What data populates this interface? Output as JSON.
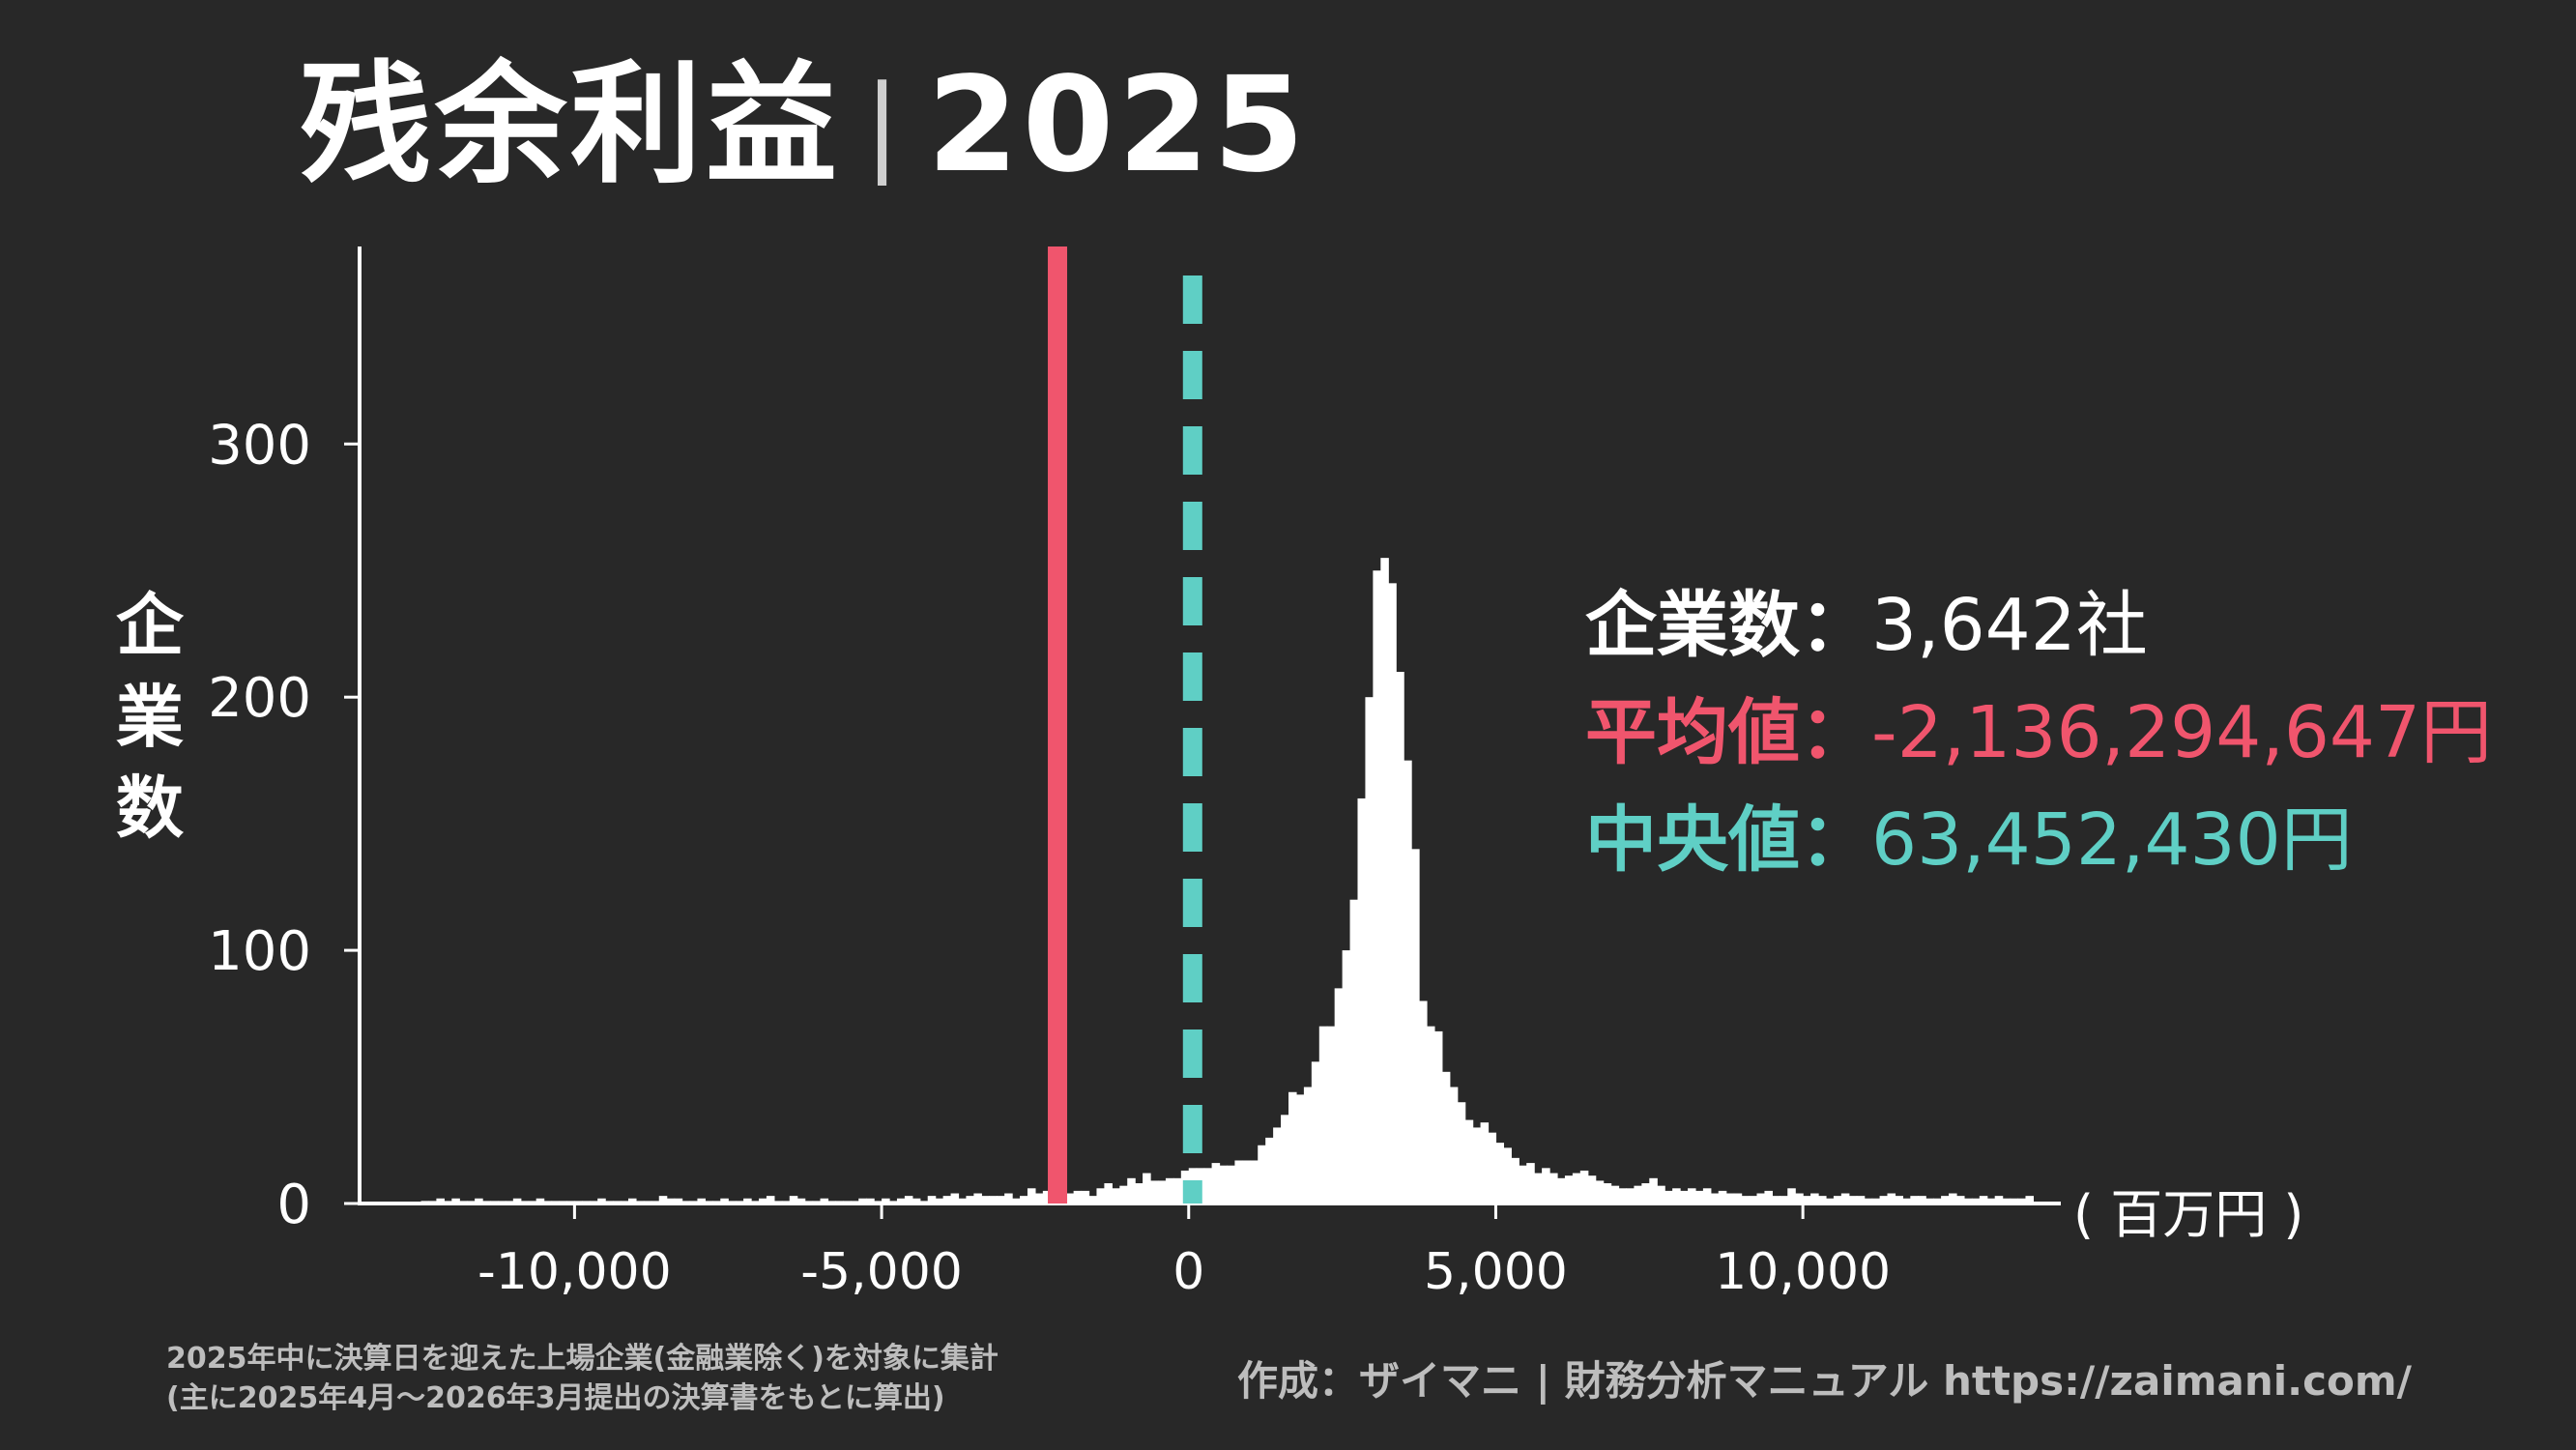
{
  "title": {
    "main": "残余利益",
    "separator": "|",
    "year": "2025"
  },
  "y_axis_label": "企業数",
  "x_axis_unit": "( 百万円 )",
  "stats": {
    "count_label": "企業数：",
    "count_value": "3,642社",
    "mean_label": "平均値：",
    "mean_value": "-2,136,294,647円",
    "median_label": "中央値：",
    "median_value": "63,452,430円"
  },
  "footnote": {
    "line1": "2025年中に決算日を迎えた上場企業(金融業除く)を対象に集計",
    "line2": "(主に2025年4月〜2026年3月提出の決算書をもとに算出)"
  },
  "credit": "作成：ザイマニ | 財務分析マニュアル https://zaimani.com/",
  "colors": {
    "background": "#282828",
    "bars": "#ffffff",
    "mean_line": "#f0556d",
    "median_line": "#5fcfc5",
    "footnote": "#bdbdbd"
  },
  "chart_data": {
    "type": "histogram",
    "x_unit": "百万円",
    "xlim": [
      -13500,
      14200
    ],
    "ylim": [
      0,
      378
    ],
    "x_ticks": [
      -10000,
      -5000,
      0,
      5000,
      10000
    ],
    "x_tick_labels": [
      "-10,000",
      "-5,000",
      "0",
      "5,000",
      "10,000"
    ],
    "y_ticks": [
      0,
      100,
      200,
      300
    ],
    "y_tick_labels": [
      "0",
      "100",
      "200",
      "300"
    ],
    "bin_width": 125,
    "bin_start": -12500,
    "counts": [
      1,
      1,
      2,
      1,
      2,
      1,
      1,
      2,
      1,
      1,
      1,
      1,
      2,
      1,
      1,
      2,
      1,
      1,
      1,
      1,
      1,
      1,
      1,
      2,
      1,
      1,
      1,
      2,
      1,
      1,
      1,
      3,
      2,
      2,
      1,
      1,
      2,
      1,
      1,
      2,
      1,
      1,
      2,
      1,
      2,
      3,
      1,
      1,
      3,
      2,
      1,
      1,
      2,
      1,
      1,
      1,
      1,
      2,
      2,
      1,
      2,
      1,
      2,
      3,
      2,
      1,
      3,
      2,
      3,
      4,
      2,
      3,
      4,
      3,
      3,
      3,
      4,
      2,
      3,
      6,
      4,
      5,
      5,
      6,
      4,
      5,
      5,
      3,
      6,
      8,
      6,
      7,
      10,
      8,
      12,
      9,
      9,
      10,
      10,
      13,
      14,
      14,
      14,
      16,
      15,
      15,
      17,
      17,
      17,
      23,
      26,
      30,
      35,
      44,
      43,
      46,
      56,
      70,
      70,
      85,
      100,
      120,
      160,
      200,
      250,
      255,
      245,
      210,
      175,
      140,
      80,
      70,
      68,
      52,
      46,
      40,
      33,
      30,
      32,
      28,
      24,
      22,
      18,
      15,
      16,
      12,
      14,
      12,
      10,
      11,
      12,
      13,
      11,
      9,
      8,
      7,
      6,
      6,
      7,
      8,
      10,
      7,
      5,
      6,
      5,
      6,
      5,
      6,
      4,
      5,
      4,
      4,
      3,
      3,
      4,
      5,
      3,
      3,
      6,
      4,
      3,
      4,
      3,
      2,
      3,
      4,
      3,
      3,
      2,
      2,
      3,
      4,
      3,
      2,
      3,
      3,
      2,
      2,
      3,
      4,
      3,
      2,
      2,
      3,
      2,
      3,
      2,
      2,
      2,
      3
    ],
    "mean": -2136.294647,
    "median": 63.45243,
    "ylabel": "企業数",
    "xlabel": "( 百万円 )"
  }
}
